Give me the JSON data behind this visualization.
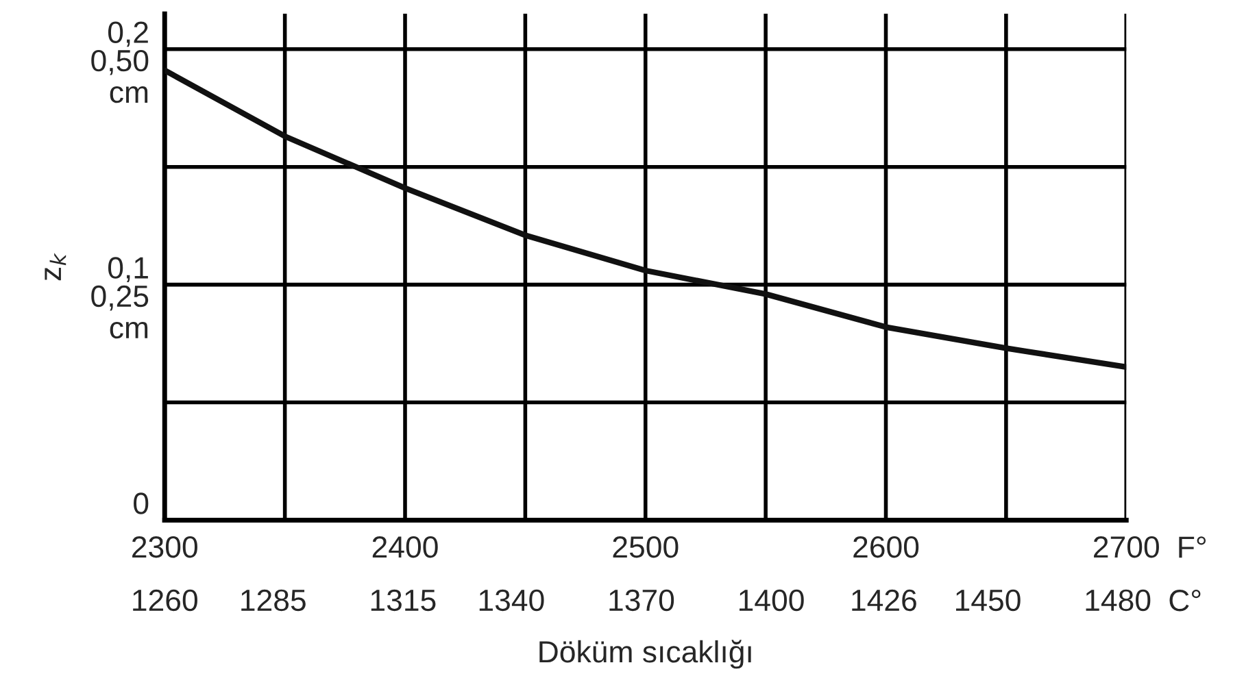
{
  "chart_data": {
    "type": "line",
    "xlabel": "Döküm sıcaklığı",
    "y2label": "z$_{k}$",
    "x": [
      2300,
      2350,
      2400,
      2450,
      2500,
      2550,
      2600,
      2650,
      2700
    ],
    "series": [
      {
        "color": "#111111",
        "values": [
          0.191,
          0.163,
          0.141,
          0.121,
          0.106,
          0.096,
          0.082,
          0.073,
          0.065
        ]
      }
    ],
    "xlim": [
      2300,
      2700
    ],
    "xticks": [
      2300,
      {
        "value": 2350,
        "label": null
      },
      2400,
      {
        "value": 2450,
        "label": null
      },
      2500,
      {
        "value": 2550,
        "label": null
      },
      2600,
      {
        "value": 2650,
        "label": null
      },
      2700
    ],
    "x2lim": [
      1260,
      1482
    ],
    "x2ticks": [
      1260,
      1285,
      1315,
      1340,
      1370,
      1400,
      1426,
      1450,
      1480
    ],
    "ylim": [
      0,
      0.215
    ],
    "yticks": [
      {
        "value": 0,
        "label": "0"
      },
      {
        "value": 0.05,
        "label": null
      },
      {
        "value": 0.1,
        "label": "0,1"
      },
      {
        "value": 0.15,
        "label": null
      },
      {
        "value": 0.2,
        "label": "0,2"
      }
    ],
    "y2lim": [
      0,
      0.5375
    ],
    "y2ticks": [
      {
        "value": 0.25,
        "label": "0,25"
      },
      {
        "value": 0.5,
        "label": "0,50"
      }
    ],
    "annotations": [
      "F°",
      "C°",
      "cm",
      "cm"
    ],
    "grid": true,
    "marker": "none",
    "line_style": "solid"
  }
}
